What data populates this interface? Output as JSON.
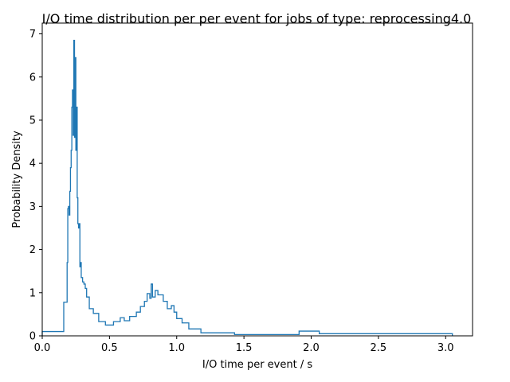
{
  "colors": {
    "line": "#1f77b4",
    "axis": "#000000",
    "background": "#ffffff"
  },
  "chart_data": {
    "type": "line",
    "drawstyle": "steps",
    "title": "I/O time distribution per per event for jobs of type: reprocessing4.0",
    "xlabel": "I/O time per event / s",
    "ylabel": "Probability Density",
    "xlim": [
      0,
      3.2
    ],
    "ylim": [
      0,
      7.25
    ],
    "grid": false,
    "legend": "none",
    "xticks": [
      0,
      0.5,
      1.0,
      1.5,
      2.0,
      2.5,
      3.0
    ],
    "xtick_labels": [
      "0.0",
      "0.5",
      "1.0",
      "1.5",
      "2.0",
      "2.5",
      "3.0"
    ],
    "yticks": [
      0,
      1,
      2,
      3,
      4,
      5,
      6,
      7
    ],
    "ytick_labels": [
      "0",
      "1",
      "2",
      "3",
      "4",
      "5",
      "6",
      "7"
    ],
    "series": [
      {
        "bin_edges": [
          0.0,
          0.16,
          0.185,
          0.19,
          0.195,
          0.2,
          0.205,
          0.21,
          0.215,
          0.22,
          0.225,
          0.23,
          0.235,
          0.24,
          0.245,
          0.25,
          0.255,
          0.26,
          0.265,
          0.27,
          0.275,
          0.28,
          0.285,
          0.29,
          0.3,
          0.31,
          0.32,
          0.33,
          0.35,
          0.38,
          0.42,
          0.47,
          0.53,
          0.58,
          0.61,
          0.65,
          0.7,
          0.73,
          0.76,
          0.78,
          0.8,
          0.81,
          0.82,
          0.84,
          0.86,
          0.9,
          0.93,
          0.96,
          0.98,
          1.0,
          1.04,
          1.09,
          1.18,
          1.43,
          1.91,
          2.06,
          3.05
        ],
        "densities": [
          0.1,
          0.78,
          1.7,
          2.95,
          3.0,
          2.8,
          3.35,
          3.9,
          4.3,
          5.3,
          5.7,
          4.65,
          6.85,
          4.6,
          6.45,
          4.3,
          5.3,
          3.2,
          2.6,
          2.5,
          2.6,
          1.6,
          1.7,
          1.35,
          1.25,
          1.2,
          1.1,
          0.9,
          0.63,
          0.52,
          0.33,
          0.25,
          0.33,
          0.42,
          0.35,
          0.45,
          0.55,
          0.68,
          0.8,
          0.98,
          0.87,
          1.2,
          0.9,
          1.05,
          0.95,
          0.8,
          0.63,
          0.7,
          0.55,
          0.4,
          0.3,
          0.16,
          0.07,
          0.03,
          0.11,
          0.05
        ]
      }
    ]
  }
}
